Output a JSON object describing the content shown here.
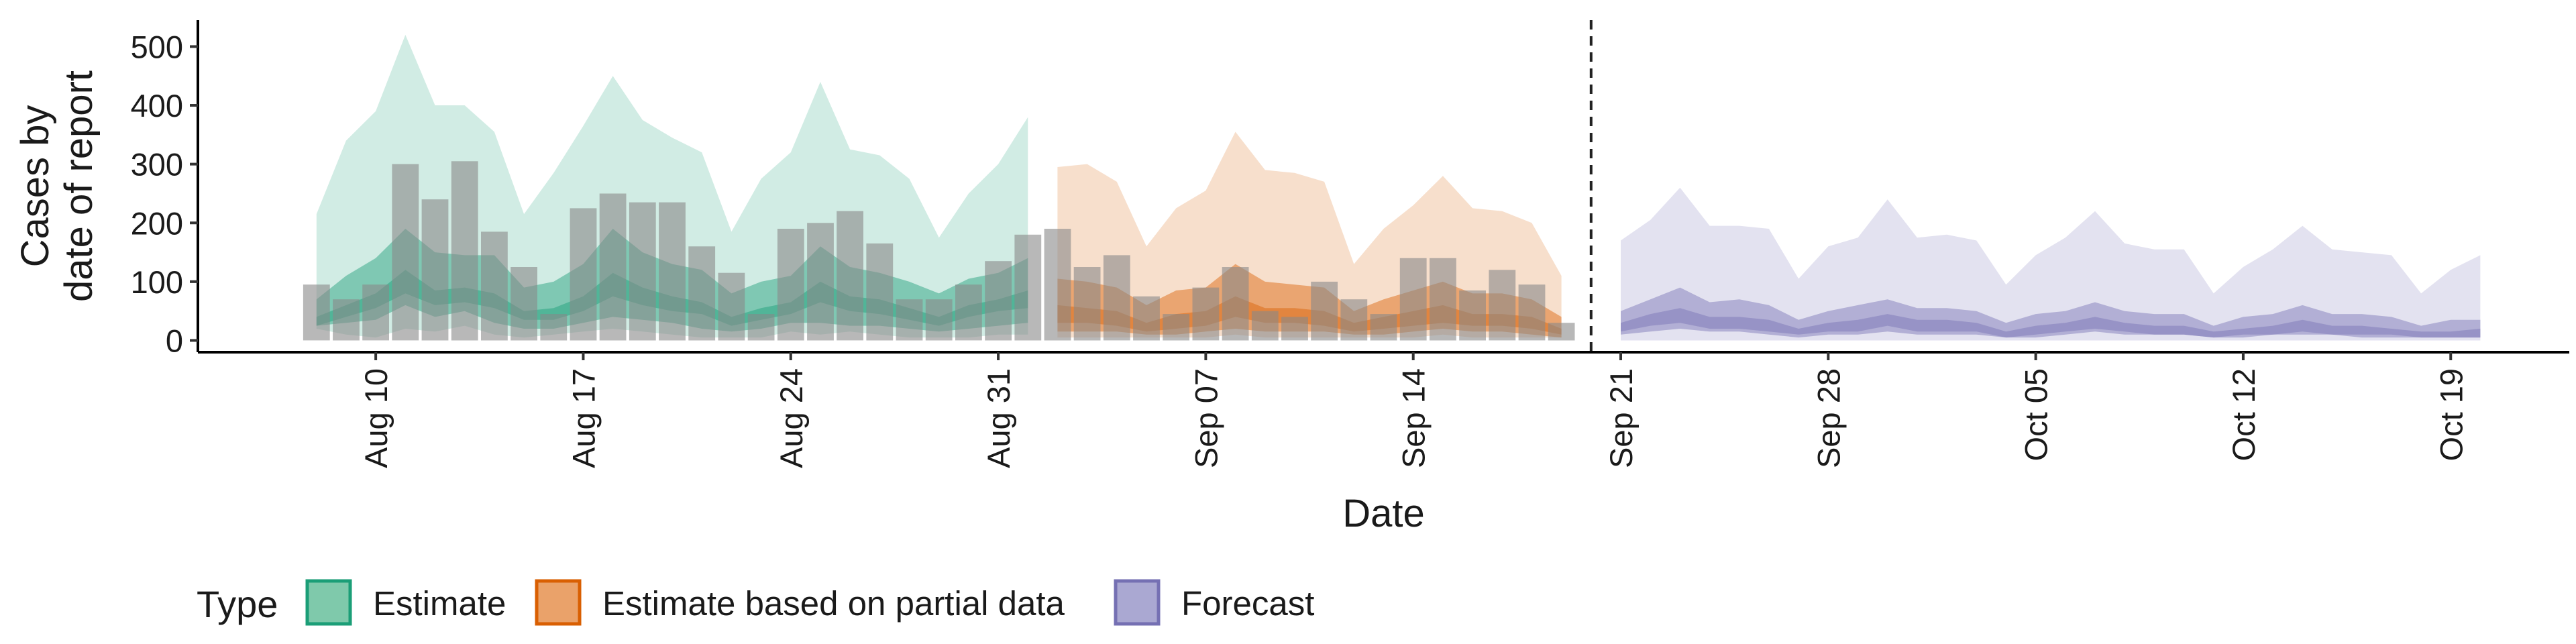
{
  "chart_data": {
    "type": "area",
    "title": "",
    "xlabel": "Date",
    "ylabel": [
      "Cases by",
      "date of report"
    ],
    "yticks": [
      0,
      100,
      200,
      300,
      400,
      500
    ],
    "ylim": [
      -20,
      545
    ],
    "x_range": [
      "2020-08-04",
      "2020-10-23"
    ],
    "xticks": [
      {
        "date": "2020-08-10",
        "label": "Aug 10"
      },
      {
        "date": "2020-08-17",
        "label": "Aug 17"
      },
      {
        "date": "2020-08-24",
        "label": "Aug 24"
      },
      {
        "date": "2020-08-31",
        "label": "Aug 31"
      },
      {
        "date": "2020-09-07",
        "label": "Sep 07"
      },
      {
        "date": "2020-09-14",
        "label": "Sep 14"
      },
      {
        "date": "2020-09-21",
        "label": "Sep 21"
      },
      {
        "date": "2020-09-28",
        "label": "Sep 28"
      },
      {
        "date": "2020-10-05",
        "label": "Oct 05"
      },
      {
        "date": "2020-10-12",
        "label": "Oct 12"
      },
      {
        "date": "2020-10-19",
        "label": "Oct 19"
      }
    ],
    "forecast_date": "2020-09-20",
    "legend": {
      "title": "Type",
      "position": "bottom-left",
      "items": [
        {
          "label": "Estimate",
          "fill": "#7fc9ab",
          "stroke": "#1b9e77"
        },
        {
          "label": "Estimate based on partial data",
          "fill": "#eaa26a",
          "stroke": "#d95f02"
        },
        {
          "label": "Forecast",
          "fill": "#aaa8d2",
          "stroke": "#7570b3"
        }
      ]
    },
    "observed_cases": {
      "start_date": "2020-08-08",
      "values": [
        95,
        70,
        95,
        300,
        240,
        305,
        185,
        125,
        45,
        225,
        250,
        235,
        235,
        160,
        115,
        45,
        190,
        200,
        220,
        165,
        70,
        70,
        95,
        135,
        180,
        190,
        125,
        145,
        75,
        45,
        90,
        125,
        50,
        40,
        100,
        70,
        45,
        140,
        140,
        85,
        120,
        95,
        30
      ]
    },
    "series": [
      {
        "name": "Estimate",
        "color": "#1b9e77",
        "start_date": "2020-08-08",
        "outer_upper": [
          215,
          340,
          390,
          520,
          400,
          400,
          355,
          215,
          285,
          365,
          450,
          375,
          345,
          320,
          185,
          275,
          320,
          440,
          325,
          315,
          275,
          175,
          250,
          300,
          380
        ],
        "outer_lower": [
          20,
          10,
          5,
          20,
          15,
          25,
          10,
          5,
          10,
          15,
          20,
          15,
          10,
          5,
          5,
          5,
          15,
          10,
          15,
          10,
          5,
          5,
          5,
          10,
          10
        ],
        "mid_upper": [
          70,
          110,
          140,
          190,
          150,
          145,
          145,
          90,
          100,
          130,
          190,
          150,
          130,
          120,
          80,
          100,
          110,
          160,
          125,
          115,
          100,
          80,
          105,
          115,
          140
        ],
        "mid_lower": [
          25,
          30,
          35,
          60,
          40,
          50,
          30,
          20,
          20,
          30,
          40,
          35,
          30,
          20,
          15,
          20,
          30,
          30,
          25,
          25,
          20,
          15,
          20,
          25,
          30
        ],
        "inner_upper": [
          40,
          60,
          80,
          120,
          85,
          90,
          80,
          50,
          55,
          75,
          115,
          90,
          75,
          65,
          40,
          55,
          65,
          100,
          75,
          70,
          55,
          40,
          60,
          70,
          85
        ],
        "inner_lower": [
          25,
          40,
          55,
          80,
          60,
          65,
          55,
          35,
          35,
          50,
          75,
          60,
          50,
          45,
          25,
          35,
          45,
          65,
          50,
          45,
          35,
          25,
          40,
          50,
          55
        ]
      },
      {
        "name": "Estimate based on partial data",
        "color": "#d95f02",
        "start_date": "2020-09-02",
        "outer_upper": [
          295,
          300,
          270,
          160,
          225,
          255,
          355,
          290,
          285,
          270,
          130,
          190,
          230,
          280,
          225,
          220,
          200,
          110
        ],
        "outer_lower": [
          5,
          5,
          5,
          5,
          5,
          5,
          10,
          5,
          5,
          5,
          5,
          5,
          5,
          10,
          5,
          5,
          5,
          5
        ],
        "mid_upper": [
          105,
          100,
          90,
          60,
          85,
          90,
          130,
          100,
          95,
          90,
          50,
          70,
          85,
          100,
          80,
          80,
          70,
          40
        ],
        "mid_lower": [
          15,
          15,
          15,
          10,
          10,
          15,
          20,
          15,
          15,
          15,
          10,
          10,
          15,
          20,
          15,
          15,
          10,
          5
        ],
        "inner_upper": [
          60,
          55,
          50,
          30,
          45,
          50,
          75,
          55,
          55,
          50,
          30,
          40,
          50,
          60,
          45,
          45,
          40,
          20
        ],
        "inner_lower": [
          30,
          30,
          25,
          15,
          20,
          25,
          40,
          30,
          30,
          25,
          15,
          20,
          25,
          30,
          25,
          25,
          20,
          10
        ]
      },
      {
        "name": "Forecast",
        "color": "#7570b3",
        "start_date": "2020-09-21",
        "outer_upper": [
          170,
          205,
          260,
          195,
          195,
          190,
          105,
          160,
          175,
          240,
          175,
          180,
          170,
          95,
          145,
          175,
          220,
          165,
          155,
          155,
          80,
          125,
          155,
          195,
          155,
          150,
          145,
          80,
          120,
          145
        ],
        "outer_lower": [
          0,
          0,
          0,
          0,
          0,
          0,
          0,
          0,
          0,
          0,
          0,
          0,
          0,
          0,
          0,
          0,
          0,
          0,
          0,
          0,
          0,
          0,
          0,
          0,
          0,
          0,
          0,
          0,
          0,
          0
        ],
        "mid_upper": [
          50,
          70,
          90,
          65,
          70,
          60,
          35,
          50,
          60,
          70,
          55,
          55,
          50,
          30,
          45,
          50,
          65,
          50,
          45,
          45,
          25,
          40,
          45,
          60,
          45,
          45,
          40,
          25,
          35,
          35
        ],
        "mid_lower": [
          10,
          15,
          20,
          15,
          15,
          10,
          5,
          10,
          10,
          15,
          10,
          10,
          10,
          5,
          5,
          10,
          15,
          10,
          10,
          10,
          5,
          5,
          10,
          10,
          10,
          5,
          5,
          5,
          5,
          5
        ],
        "inner_upper": [
          30,
          45,
          55,
          40,
          40,
          35,
          20,
          30,
          35,
          45,
          35,
          35,
          30,
          15,
          25,
          30,
          40,
          30,
          25,
          25,
          15,
          20,
          25,
          35,
          25,
          25,
          20,
          15,
          15,
          20
        ],
        "inner_lower": [
          15,
          25,
          30,
          20,
          20,
          15,
          10,
          15,
          15,
          25,
          15,
          15,
          15,
          5,
          10,
          15,
          20,
          15,
          10,
          10,
          5,
          10,
          10,
          15,
          10,
          10,
          10,
          5,
          5,
          5
        ]
      }
    ]
  }
}
